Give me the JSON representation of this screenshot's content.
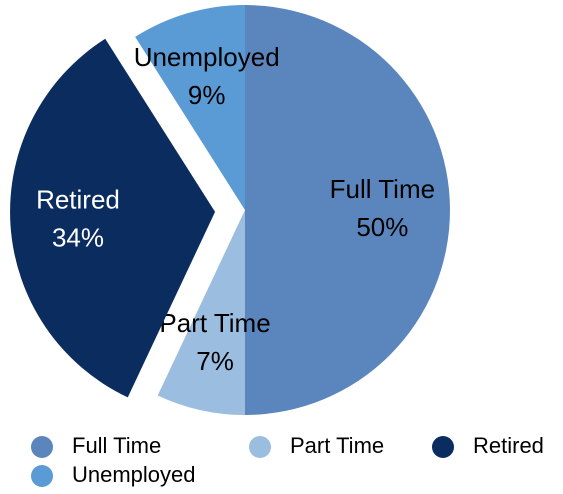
{
  "chart_data": {
    "type": "pie",
    "categories": [
      "Full Time",
      "Part Time",
      "Retired",
      "Unemployed"
    ],
    "values": [
      50,
      7,
      34,
      9
    ],
    "value_labels": [
      "50%",
      "7%",
      "34%",
      "9%"
    ],
    "colors": [
      "#5b86bd",
      "#9bbde0",
      "#0b2c5f",
      "#5a9bd5"
    ],
    "explode": [
      false,
      false,
      true,
      false
    ],
    "legend": "bottom"
  }
}
